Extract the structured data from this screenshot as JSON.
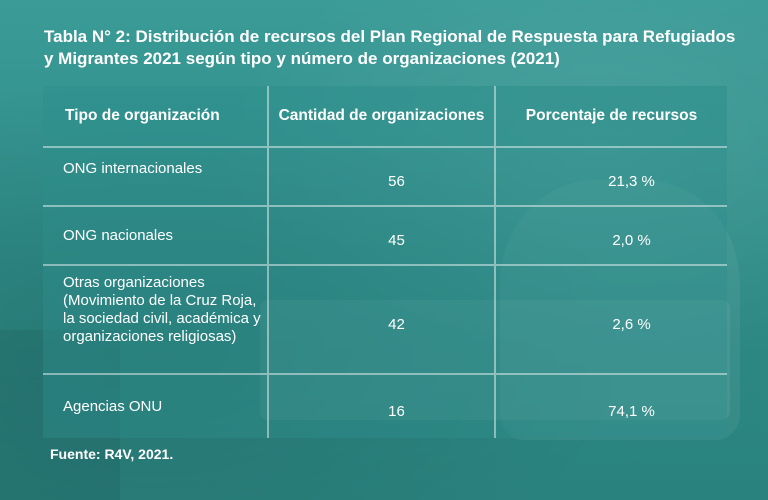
{
  "title": "Tabla N° 2: Distribución de recursos del Plan Regional de Respuesta para Refugiados y Migrantes 2021 según tipo y número de organizaciones (2021)",
  "table": {
    "headers": [
      "Tipo de organización",
      "Cantidad de organizaciones",
      "Porcentaje de recursos"
    ],
    "rows": [
      {
        "tipo": "ONG internacionales",
        "cantidad": "56",
        "porcentaje": "21,3 %"
      },
      {
        "tipo": "ONG nacionales",
        "cantidad": "45",
        "porcentaje": "2,0 %"
      },
      {
        "tipo": "Otras organizaciones (Movimiento de la Cruz Roja, la sociedad civil, académica y organizaciones religiosas)",
        "cantidad": "42",
        "porcentaje": "2,6 %"
      },
      {
        "tipo": "Agencias ONU",
        "cantidad": "16",
        "porcentaje": "74,1 %"
      }
    ]
  },
  "source": "Fuente: R4V, 2021.",
  "colors": {
    "background": "#2f8f8c",
    "text": "#ffffff"
  }
}
